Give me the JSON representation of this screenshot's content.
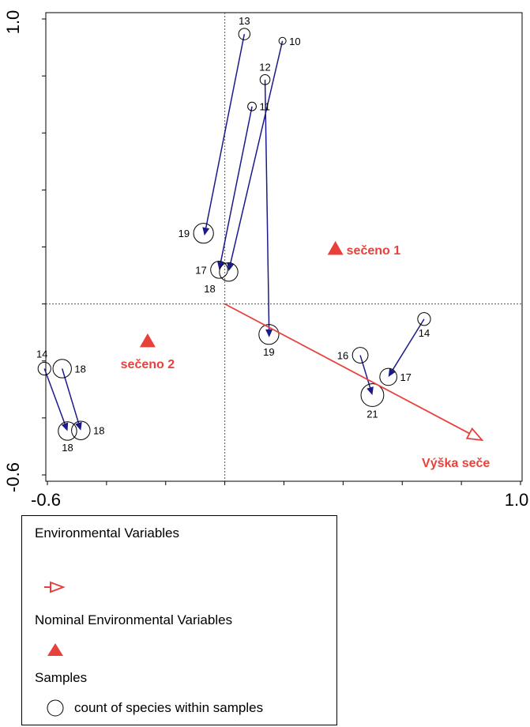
{
  "chart_data": {
    "type": "scatter",
    "title": "",
    "xlabel": "",
    "ylabel": "",
    "xlim": [
      -0.6,
      1.0
    ],
    "ylim": [
      -0.6,
      1.0
    ],
    "x_tick_labels": [
      "-0.6",
      "1.0"
    ],
    "y_tick_labels": [
      "-0.6",
      "1.0"
    ],
    "colors": {
      "arrow": "#1a1a8c",
      "env": "#e8413c"
    },
    "samples": [
      {
        "label": "13",
        "x": 0.066,
        "y": 0.947,
        "size": 13,
        "label_pos": "above"
      },
      {
        "label": "10",
        "x": 0.195,
        "y": 0.923,
        "size": 10,
        "label_pos": "right"
      },
      {
        "label": "12",
        "x": 0.136,
        "y": 0.787,
        "size": 12,
        "label_pos": "above"
      },
      {
        "label": "11",
        "x": 0.092,
        "y": 0.693,
        "size": 11,
        "label_pos": "right"
      },
      {
        "label": "19",
        "x": -0.072,
        "y": 0.248,
        "size": 19,
        "label_pos": "left"
      },
      {
        "label": "17",
        "x": -0.019,
        "y": 0.12,
        "size": 17,
        "label_pos": "left"
      },
      {
        "label": "18",
        "x": 0.013,
        "y": 0.112,
        "size": 18,
        "label_pos": "below-left"
      },
      {
        "label": "19",
        "x": 0.149,
        "y": -0.107,
        "size": 19,
        "label_pos": "below"
      },
      {
        "label": "16",
        "x": 0.458,
        "y": -0.18,
        "size": 16,
        "label_pos": "left"
      },
      {
        "label": "14",
        "x": 0.674,
        "y": -0.053,
        "size": 14,
        "label_pos": "below"
      },
      {
        "label": "17",
        "x": 0.553,
        "y": -0.256,
        "size": 17,
        "label_pos": "right"
      },
      {
        "label": "21",
        "x": 0.499,
        "y": -0.32,
        "size": 21,
        "label_pos": "below"
      },
      {
        "label": "14",
        "x": -0.61,
        "y": -0.227,
        "size": 14,
        "label_pos": "above-left"
      },
      {
        "label": "18",
        "x": -0.55,
        "y": -0.227,
        "size": 18,
        "label_pos": "right"
      },
      {
        "label": "18",
        "x": -0.532,
        "y": -0.446,
        "size": 18,
        "label_pos": "below"
      },
      {
        "label": "18",
        "x": -0.487,
        "y": -0.444,
        "size": 18,
        "label_pos": "right"
      }
    ],
    "arrows": [
      {
        "from": [
          0.066,
          0.947
        ],
        "to": [
          -0.069,
          0.24
        ]
      },
      {
        "from": [
          0.195,
          0.923
        ],
        "to": [
          0.013,
          0.115
        ]
      },
      {
        "from": [
          0.136,
          0.787
        ],
        "to": [
          0.15,
          -0.117
        ]
      },
      {
        "from": [
          0.092,
          0.693
        ],
        "to": [
          -0.019,
          0.12
        ]
      },
      {
        "from": [
          0.674,
          -0.053
        ],
        "to": [
          0.553,
          -0.256
        ]
      },
      {
        "from": [
          0.458,
          -0.18
        ],
        "to": [
          0.499,
          -0.32
        ]
      },
      {
        "from": [
          -0.61,
          -0.227
        ],
        "to": [
          -0.532,
          -0.446
        ]
      },
      {
        "from": [
          -0.55,
          -0.227
        ],
        "to": [
          -0.487,
          -0.444
        ]
      }
    ],
    "nominal_env": [
      {
        "label": "sečeno 1",
        "x": 0.374,
        "y": 0.193
      },
      {
        "label": "sečeno 2",
        "x": -0.261,
        "y": -0.131
      }
    ],
    "env_vector": {
      "label": "Výška seče",
      "from": [
        0.0,
        0.0
      ],
      "to": [
        0.87,
        -0.478
      ]
    },
    "grid": false,
    "origin_lines": true,
    "legend": {
      "placement": "bottom-left",
      "env_title": "Environmental Variables",
      "nominal_title": "Nominal Environmental Variables",
      "samples_title": "Samples",
      "samples_desc": "count of species within samples"
    }
  }
}
